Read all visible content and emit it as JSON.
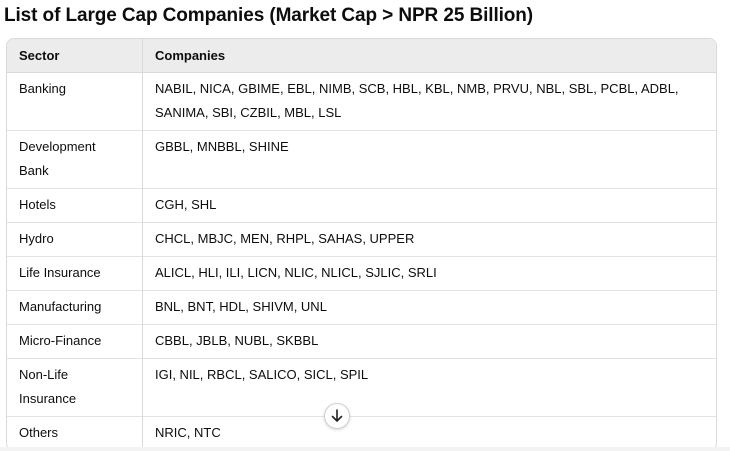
{
  "title": "List of Large Cap Companies (Market Cap > NPR 25 Billion)",
  "table": {
    "headers": [
      "Sector",
      "Companies"
    ],
    "rows": [
      [
        "Banking",
        "NABIL, NICA, GBIME, EBL, NIMB, SCB, HBL, KBL, NMB, PRVU, NBL, SBL, PCBL, ADBL, SANIMA, SBI, CZBIL, MBL, LSL"
      ],
      [
        "Development Bank",
        "GBBL, MNBBL, SHINE"
      ],
      [
        "Hotels",
        "CGH, SHL"
      ],
      [
        "Hydro",
        "CHCL, MBJC, MEN, RHPL, SAHAS, UPPER"
      ],
      [
        "Life Insurance",
        "ALICL, HLI, ILI, LICN, NLIC, NLICL, SJLIC, SRLI"
      ],
      [
        "Manufacturing",
        "BNL, BNT, HDL, SHIVM, UNL"
      ],
      [
        "Micro-Finance",
        "CBBL, JBLB, NUBL, SKBBL"
      ],
      [
        "Non-Life Insurance",
        "IGI, NIL, RBCL, SALICO, SICL, SPIL"
      ],
      [
        "Others",
        "NRIC, NTC"
      ]
    ]
  }
}
